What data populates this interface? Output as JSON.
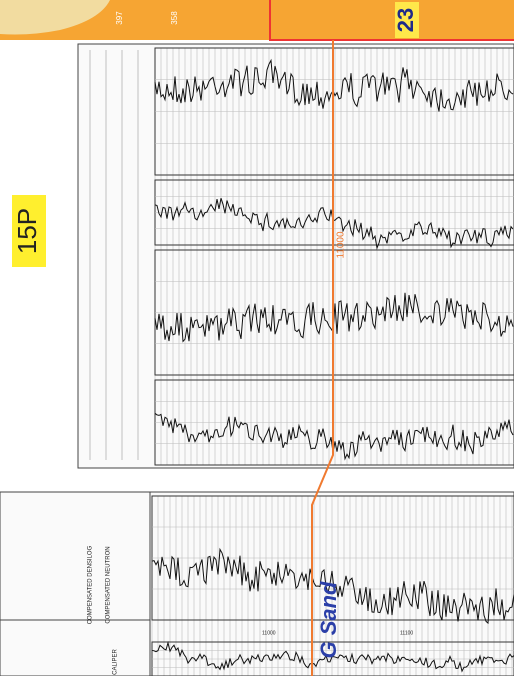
{
  "labels": {
    "well_top": "15P",
    "depth_marker": "11000",
    "well_right": "23",
    "zone": "G Sand",
    "log_header_1": "COMPENSATED DENSILOG",
    "log_header_2": "COMPENSATED NEUTRON",
    "log_header_3": "CALIPER",
    "depth_lower_1": "11000",
    "depth_lower_2": "11100",
    "map_label_1": "397",
    "map_label_2": "358"
  }
}
